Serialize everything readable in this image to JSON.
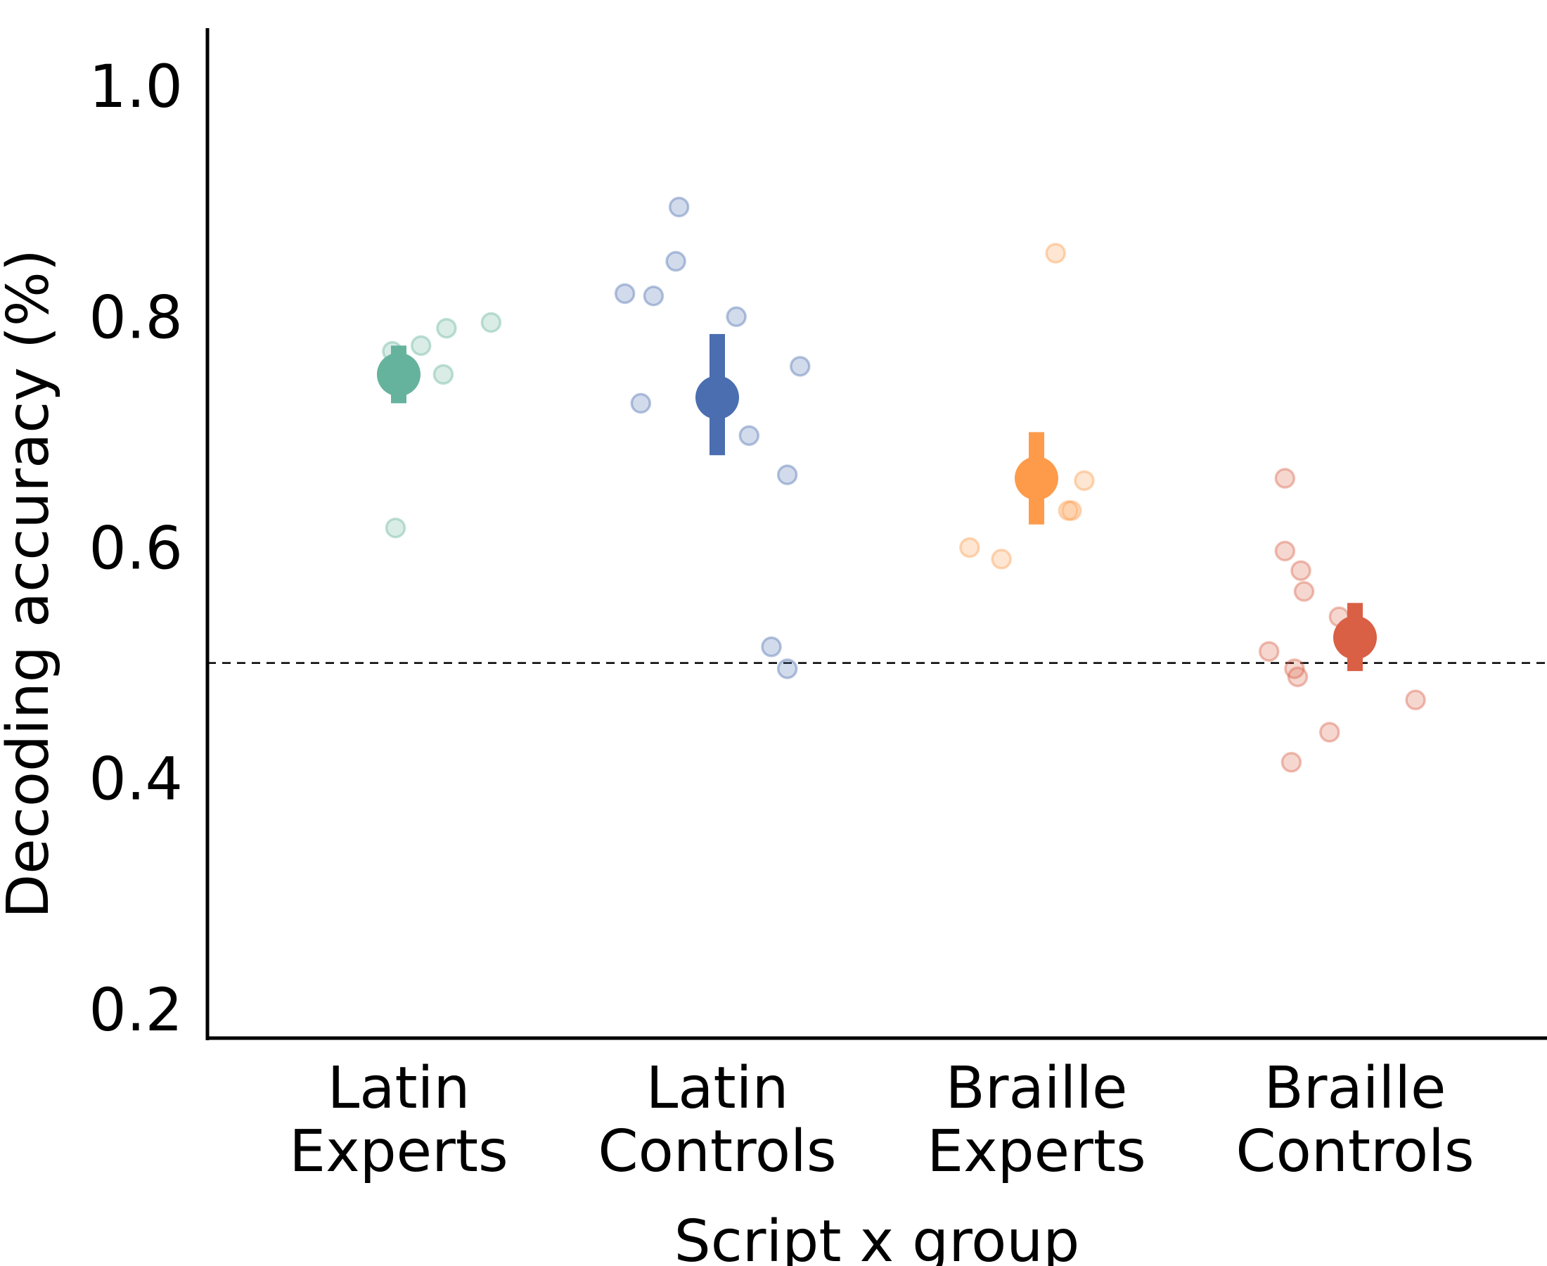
{
  "chart_data": {
    "type": "scatter",
    "xlabel": "Script x group",
    "ylabel": "Decoding accuracy (%)",
    "ylim": [
      0.175,
      1.05
    ],
    "yticks": [
      0.2,
      0.4,
      0.6,
      0.8,
      1.0
    ],
    "ytick_labels": [
      "0.2",
      "0.4",
      "0.6",
      "0.8",
      "1.0"
    ],
    "chance_level": 0.5,
    "grid": false,
    "legend": "none",
    "categories": [
      {
        "label_line1": "Latin",
        "label_line2": "Experts"
      },
      {
        "label_line1": "Latin",
        "label_line2": "Controls"
      },
      {
        "label_line1": "Braille",
        "label_line2": "Experts"
      },
      {
        "label_line1": "Braille",
        "label_line2": "Controls"
      }
    ],
    "series": [
      {
        "category": "Latin Experts",
        "color": "#66b39d",
        "mean": 0.75,
        "error_low": 0.725,
        "error_high": 0.775,
        "points": [
          {
            "offset": -0.02,
            "y": 0.77
          },
          {
            "offset": 0.07,
            "y": 0.775
          },
          {
            "offset": 0.15,
            "y": 0.79
          },
          {
            "offset": 0.29,
            "y": 0.795
          },
          {
            "offset": 0.14,
            "y": 0.75
          },
          {
            "offset": -0.01,
            "y": 0.617
          }
        ]
      },
      {
        "category": "Latin Controls",
        "color": "#4a6eb0",
        "mean": 0.73,
        "error_low": 0.68,
        "error_high": 0.785,
        "points": [
          {
            "offset": -0.29,
            "y": 0.82
          },
          {
            "offset": -0.2,
            "y": 0.818
          },
          {
            "offset": -0.12,
            "y": 0.895
          },
          {
            "offset": -0.13,
            "y": 0.848
          },
          {
            "offset": 0.06,
            "y": 0.8
          },
          {
            "offset": 0.26,
            "y": 0.757
          },
          {
            "offset": -0.24,
            "y": 0.725
          },
          {
            "offset": 0.1,
            "y": 0.697
          },
          {
            "offset": 0.22,
            "y": 0.663
          },
          {
            "offset": 0.17,
            "y": 0.514
          },
          {
            "offset": 0.22,
            "y": 0.495
          }
        ]
      },
      {
        "category": "Braille Experts",
        "color": "#fd9b4b",
        "mean": 0.66,
        "error_low": 0.62,
        "error_high": 0.7,
        "points": [
          {
            "offset": 0.06,
            "y": 0.855
          },
          {
            "offset": 0.15,
            "y": 0.658
          },
          {
            "offset": 0.1,
            "y": 0.632
          },
          {
            "offset": 0.11,
            "y": 0.632
          },
          {
            "offset": -0.21,
            "y": 0.6
          },
          {
            "offset": -0.11,
            "y": 0.59
          }
        ]
      },
      {
        "category": "Braille Controls",
        "color": "#d95f45",
        "mean": 0.522,
        "error_low": 0.493,
        "error_high": 0.552,
        "points": [
          {
            "offset": -0.22,
            "y": 0.66
          },
          {
            "offset": -0.22,
            "y": 0.597
          },
          {
            "offset": -0.17,
            "y": 0.58
          },
          {
            "offset": -0.16,
            "y": 0.562
          },
          {
            "offset": -0.05,
            "y": 0.54
          },
          {
            "offset": -0.27,
            "y": 0.51
          },
          {
            "offset": -0.19,
            "y": 0.495
          },
          {
            "offset": -0.18,
            "y": 0.488
          },
          {
            "offset": 0.19,
            "y": 0.468
          },
          {
            "offset": -0.08,
            "y": 0.44
          },
          {
            "offset": -0.2,
            "y": 0.414
          }
        ]
      }
    ]
  }
}
